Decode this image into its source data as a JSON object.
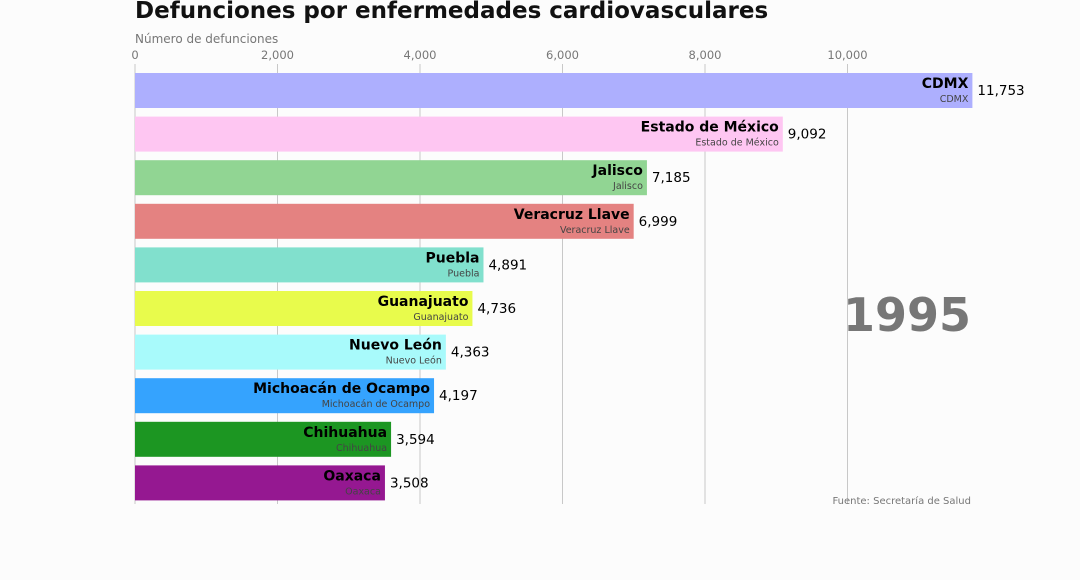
{
  "chart_data": {
    "type": "bar",
    "orientation": "horizontal",
    "title": "Defunciones por enfermedades cardiovasculares",
    "xlabel": "Número de defunciones",
    "ylabel": "",
    "xlim": [
      0,
      12000
    ],
    "x_ticks": [
      0,
      2000,
      4000,
      6000,
      8000,
      10000
    ],
    "x_tick_labels": [
      "0",
      "2,000",
      "4,000",
      "6,000",
      "8,000",
      "10,000"
    ],
    "grid": true,
    "period_label": "1995",
    "source_note": "Fuente: Secretaría de Salud",
    "categories": [
      "CDMX",
      "Estado de México",
      "Jalisco",
      "Veracruz Llave",
      "Puebla",
      "Guanajuato",
      "Nuevo León",
      "Michoacán de Ocampo",
      "Chihuahua",
      "Oaxaca"
    ],
    "sublabels": [
      "CDMX",
      "Estado de México",
      "Jalisco",
      "Veracruz Llave",
      "Puebla",
      "Guanajuato",
      "Nuevo León",
      "Michoacán de Ocampo",
      "Chihuahua",
      "Oaxaca"
    ],
    "values": [
      11753,
      9092,
      7185,
      6999,
      4891,
      4736,
      4363,
      4197,
      3594,
      3508
    ],
    "value_labels": [
      "11,753",
      "9,092",
      "7,185",
      "6,999",
      "4,891",
      "4,736",
      "4,363",
      "4,197",
      "3,594",
      "3,508"
    ],
    "colors": [
      "#adaffe",
      "#fec6f2",
      "#91d593",
      "#e48281",
      "#81e0cd",
      "#e8fb4c",
      "#a8fafb",
      "#35a3fe",
      "#1c9622",
      "#951891"
    ]
  }
}
